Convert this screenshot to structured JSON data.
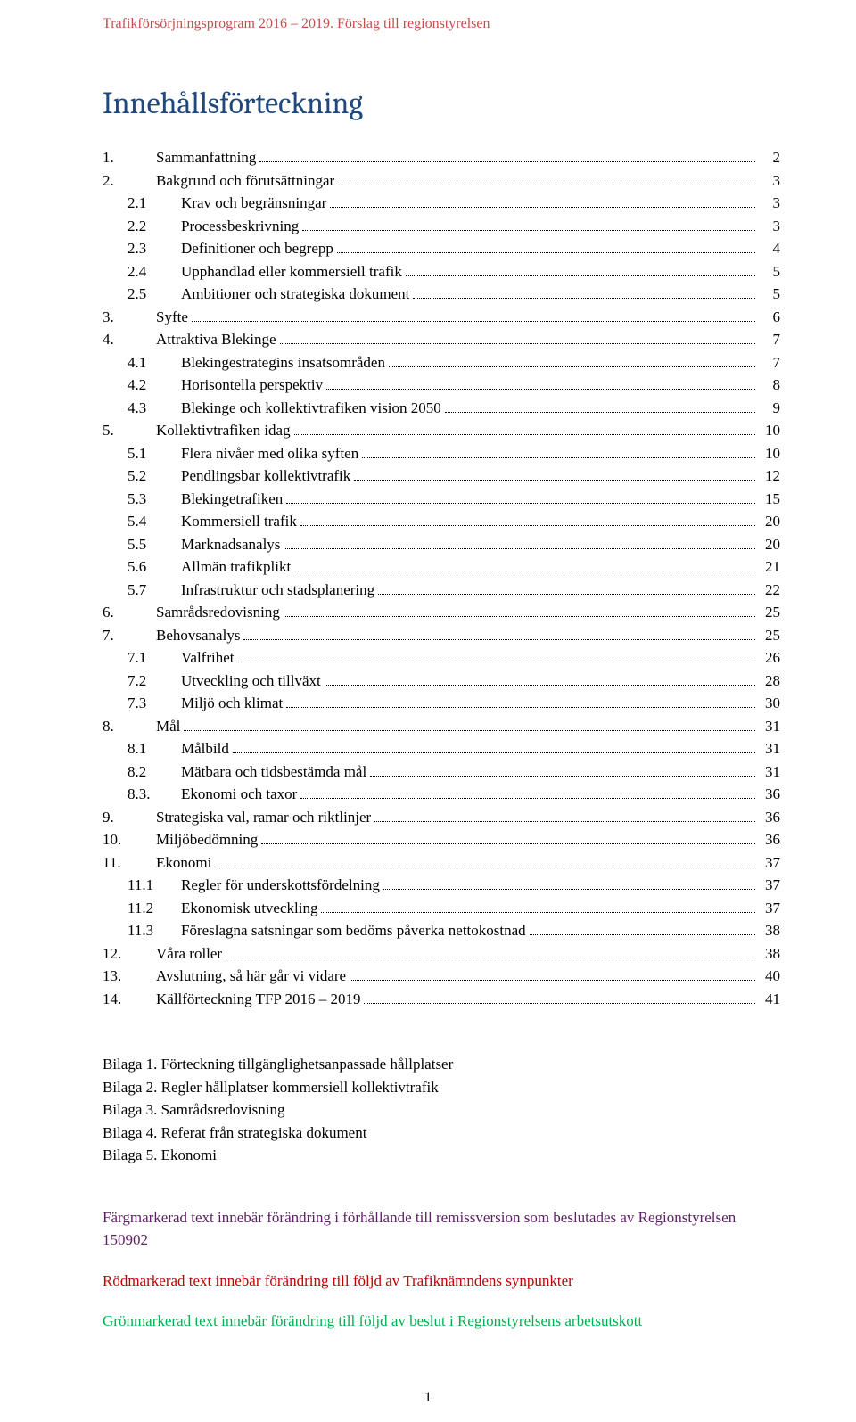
{
  "header": "Trafikförsörjningsprogram 2016 – 2019. Förslag till regionstyrelsen",
  "title": "Innehållsförteckning",
  "colors": {
    "header_color": "#c0504d",
    "title_color": "#1f497d",
    "note_purple": "#5f2167",
    "note_red": "#c00000",
    "note_green": "#00b050",
    "text": "#000000"
  },
  "toc": [
    {
      "num": "1.",
      "label": "Sammanfattning",
      "page": "2",
      "indent": false
    },
    {
      "num": "2.",
      "label": "Bakgrund och förutsättningar",
      "page": "3",
      "indent": false
    },
    {
      "num": "2.1",
      "label": "Krav och begränsningar",
      "page": "3",
      "indent": true
    },
    {
      "num": "2.2",
      "label": "Processbeskrivning",
      "page": "3",
      "indent": true
    },
    {
      "num": "2.3",
      "label": "Definitioner och begrepp",
      "page": "4",
      "indent": true
    },
    {
      "num": "2.4",
      "label": "Upphandlad eller kommersiell trafik",
      "page": "5",
      "indent": true
    },
    {
      "num": "2.5",
      "label": "Ambitioner och strategiska dokument",
      "page": "5",
      "indent": true
    },
    {
      "num": "3.",
      "label": "Syfte",
      "page": "6",
      "indent": false
    },
    {
      "num": "4.",
      "label": "Attraktiva Blekinge",
      "page": "7",
      "indent": false
    },
    {
      "num": "4.1",
      "label": "Blekingestrategins insatsområden",
      "page": "7",
      "indent": true
    },
    {
      "num": "4.2",
      "label": "Horisontella perspektiv",
      "page": "8",
      "indent": true
    },
    {
      "num": "4.3",
      "label": "Blekinge och kollektivtrafiken vision 2050",
      "page": "9",
      "indent": true
    },
    {
      "num": "5.",
      "label": "Kollektivtrafiken idag",
      "page": "10",
      "indent": false
    },
    {
      "num": "5.1",
      "label": "Flera nivåer med olika syften",
      "page": "10",
      "indent": true
    },
    {
      "num": "5.2",
      "label": "Pendlingsbar kollektivtrafik",
      "page": "12",
      "indent": true
    },
    {
      "num": "5.3",
      "label": "Blekingetrafiken",
      "page": "15",
      "indent": true
    },
    {
      "num": "5.4",
      "label": "Kommersiell trafik",
      "page": "20",
      "indent": true
    },
    {
      "num": "5.5",
      "label": "Marknadsanalys",
      "page": "20",
      "indent": true
    },
    {
      "num": "5.6",
      "label": "Allmän trafikplikt",
      "page": "21",
      "indent": true
    },
    {
      "num": "5.7",
      "label": "Infrastruktur och stadsplanering",
      "page": "22",
      "indent": true
    },
    {
      "num": "6.",
      "label": "Samrådsredovisning",
      "page": "25",
      "indent": false
    },
    {
      "num": "7.",
      "label": "Behovsanalys",
      "page": "25",
      "indent": false
    },
    {
      "num": "7.1",
      "label": "Valfrihet",
      "page": "26",
      "indent": true
    },
    {
      "num": "7.2",
      "label": "Utveckling och tillväxt",
      "page": "28",
      "indent": true
    },
    {
      "num": "7.3",
      "label": "Miljö och klimat",
      "page": "30",
      "indent": true
    },
    {
      "num": "8.",
      "label": "Mål",
      "page": "31",
      "indent": false
    },
    {
      "num": "8.1",
      "label": "Målbild",
      "page": "31",
      "indent": true
    },
    {
      "num": "8.2",
      "label": "Mätbara och tidsbestämda mål",
      "page": "31",
      "indent": true
    },
    {
      "num": "8.3.",
      "label": "Ekonomi och taxor",
      "page": "36",
      "indent": true
    },
    {
      "num": "9.",
      "label": "Strategiska val, ramar och riktlinjer",
      "page": "36",
      "indent": false
    },
    {
      "num": "10.",
      "label": "Miljöbedömning",
      "page": "36",
      "indent": false
    },
    {
      "num": "11.",
      "label": "Ekonomi",
      "page": "37",
      "indent": false
    },
    {
      "num": "11.1",
      "label": "Regler för underskottsfördelning",
      "page": "37",
      "indent": true
    },
    {
      "num": "11.2",
      "label": "Ekonomisk utveckling",
      "page": "37",
      "indent": true
    },
    {
      "num": "11.3",
      "label": "Föreslagna satsningar som bedöms påverka nettokostnad",
      "page": "38",
      "indent": true
    },
    {
      "num": "12.",
      "label": "Våra roller",
      "page": "38",
      "indent": false
    },
    {
      "num": "13.",
      "label": "Avslutning, så här går vi vidare",
      "page": "40",
      "indent": false
    },
    {
      "num": "14.",
      "label": "Källförteckning TFP 2016 – 2019",
      "page": "41",
      "indent": false
    }
  ],
  "appendix": [
    "Bilaga 1. Förteckning tillgänglighetsanpassade hållplatser",
    "Bilaga 2. Regler hållplatser kommersiell kollektivtrafik",
    "Bilaga 3. Samrådsredovisning",
    "Bilaga 4. Referat från strategiska dokument",
    "Bilaga 5. Ekonomi"
  ],
  "notes": [
    {
      "text": "Färgmarkerad text innebär förändring i förhållande till remissversion som beslutades av Regionstyrelsen 150902",
      "color": "#5f2167"
    },
    {
      "text": "Rödmarkerad text innebär förändring till följd av Trafiknämndens synpunkter",
      "color": "#c00000"
    },
    {
      "text": "Grönmarkerad text innebär förändring till följd av beslut i Regionstyrelsens arbetsutskott",
      "color": "#00b050"
    }
  ],
  "page_number": "1"
}
